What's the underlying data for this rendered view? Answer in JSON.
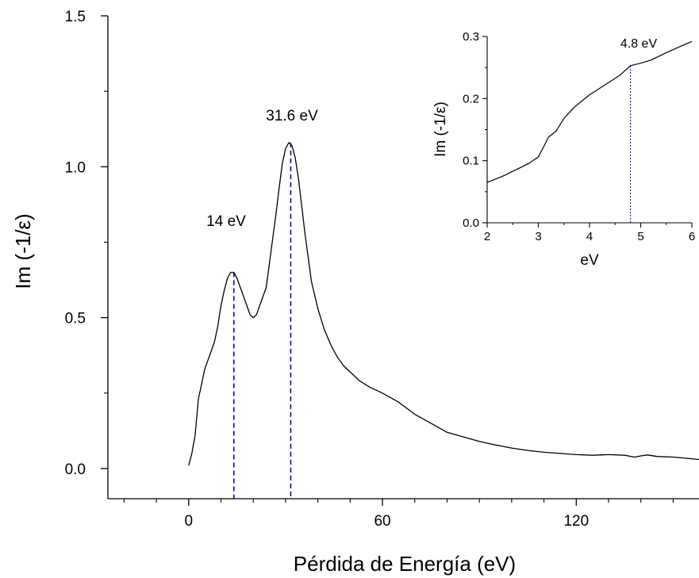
{
  "chart_data": [
    {
      "type": "line",
      "xlabel": "Pérdida de Energía (eV)",
      "ylabel": "Im (-1/ε)",
      "xlim": [
        -25,
        158
      ],
      "ylim": [
        -0.1,
        1.5
      ],
      "x_ticks": [
        "0",
        "60",
        "120"
      ],
      "y_ticks": [
        "0.0",
        "0.5",
        "1.0",
        "1.5"
      ],
      "grid": false,
      "series": [
        {
          "color": "#000000",
          "x": [
            0,
            1,
            2,
            3,
            4,
            5,
            6,
            7,
            8,
            9,
            10,
            11,
            12,
            13,
            14,
            15,
            16,
            17,
            18,
            19,
            20,
            21,
            22,
            23,
            24,
            25,
            26,
            27,
            28,
            29,
            30,
            31,
            32,
            33,
            34,
            35,
            36,
            37,
            38,
            40,
            42,
            44,
            46,
            48,
            50,
            53,
            56,
            60,
            65,
            70,
            75,
            80,
            85,
            90,
            95,
            100,
            105,
            110,
            115,
            120,
            125,
            130,
            135,
            138,
            140,
            142,
            145,
            150,
            155,
            158
          ],
          "y": [
            0.01,
            0.05,
            0.11,
            0.23,
            0.28,
            0.33,
            0.36,
            0.39,
            0.42,
            0.47,
            0.54,
            0.59,
            0.63,
            0.65,
            0.65,
            0.63,
            0.6,
            0.57,
            0.54,
            0.51,
            0.5,
            0.51,
            0.54,
            0.57,
            0.6,
            0.68,
            0.76,
            0.84,
            0.93,
            1.01,
            1.06,
            1.08,
            1.07,
            1.03,
            0.96,
            0.87,
            0.78,
            0.7,
            0.62,
            0.53,
            0.46,
            0.41,
            0.37,
            0.34,
            0.32,
            0.29,
            0.27,
            0.25,
            0.22,
            0.18,
            0.15,
            0.12,
            0.105,
            0.09,
            0.078,
            0.068,
            0.06,
            0.054,
            0.05,
            0.046,
            0.044,
            0.046,
            0.044,
            0.038,
            0.042,
            0.045,
            0.04,
            0.038,
            0.033,
            0.03
          ]
        }
      ],
      "annotations": [
        {
          "text": "14 eV",
          "x": 14,
          "y": 0.65,
          "color": "#0000cc"
        },
        {
          "text": "31.6 eV",
          "x": 31.6,
          "y": 1.08,
          "color": "#0000cc"
        }
      ]
    },
    {
      "type": "line",
      "xlabel": "eV",
      "ylabel": "Im (-1/ε)",
      "xlim": [
        2,
        6
      ],
      "ylim": [
        0,
        0.3
      ],
      "x_ticks": [
        "2",
        "3",
        "4",
        "5",
        "6"
      ],
      "y_ticks": [
        "0.0",
        "0.1",
        "0.2",
        "0.3"
      ],
      "grid": false,
      "series": [
        {
          "color": "#000000",
          "x": [
            2,
            2.3,
            2.6,
            2.8,
            3.0,
            3.1,
            3.2,
            3.35,
            3.5,
            3.7,
            4.0,
            4.3,
            4.6,
            4.8,
            5.0,
            5.2,
            5.5,
            5.8,
            6.0
          ],
          "y": [
            0.065,
            0.075,
            0.087,
            0.095,
            0.106,
            0.122,
            0.138,
            0.148,
            0.168,
            0.186,
            0.206,
            0.222,
            0.238,
            0.253,
            0.257,
            0.262,
            0.274,
            0.285,
            0.292
          ]
        }
      ],
      "annotations": [
        {
          "text": "4.8 eV",
          "x": 4.8,
          "y": 0.253,
          "color": "#0000cc"
        }
      ]
    }
  ]
}
